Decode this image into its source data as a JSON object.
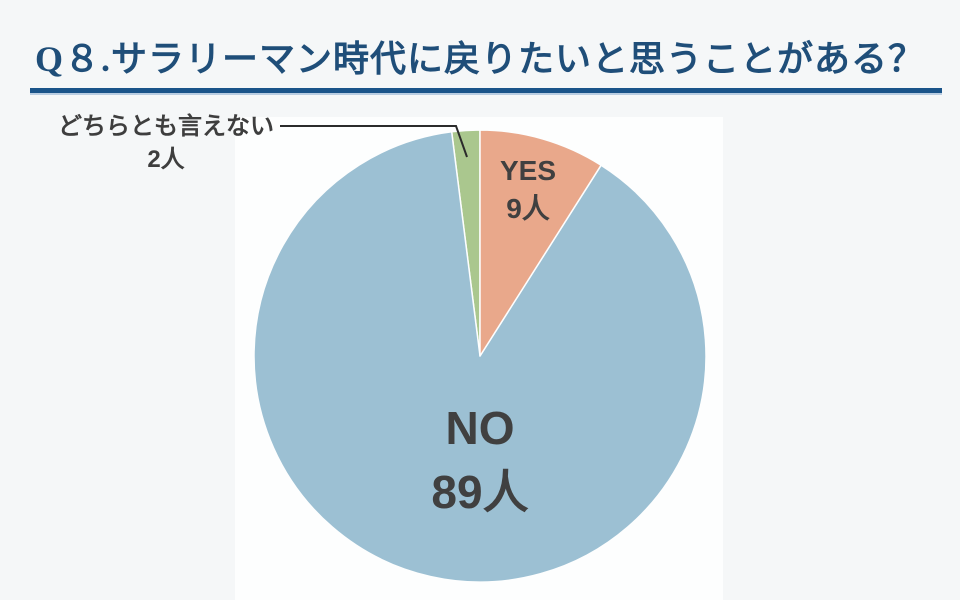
{
  "header": {
    "title": "Q８.サラリーマン時代に戻りたいと思うことがある？"
  },
  "page": {
    "background_color": "#f5f7f8",
    "plot_background_color": "#fdfefe",
    "title_color": "#1f4e79",
    "title_rule_color": "#1a548a",
    "label_text_color": "#3e3e3e"
  },
  "chart_data": {
    "type": "pie",
    "title": "Q８.サラリーマン時代に戻りたいと思うことがある？",
    "unit": "人",
    "total": 100,
    "start_angle_deg": 0,
    "direction": "clockwise",
    "legend_position": "none",
    "slices": [
      {
        "id": "yes",
        "label": "YES",
        "value": 9,
        "count_label": "9人",
        "color": "#e9a88b",
        "label_position": "inside"
      },
      {
        "id": "no",
        "label": "NO",
        "value": 89,
        "count_label": "89人",
        "color": "#9cc0d3",
        "label_position": "inside"
      },
      {
        "id": "undecided",
        "label": "どちらとも言えない",
        "value": 2,
        "count_label": "2人",
        "color": "#aac78e",
        "label_position": "outside-callout"
      }
    ]
  }
}
